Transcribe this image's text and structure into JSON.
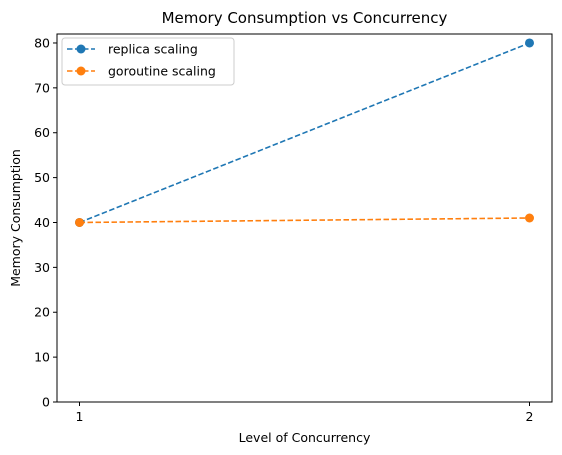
{
  "chart_data": {
    "type": "line",
    "title": "Memory Consumption vs Concurrency",
    "xlabel": "Level of Concurrency",
    "ylabel": "Memory Consumption",
    "x": [
      1,
      2
    ],
    "xticks": [
      "1",
      "2"
    ],
    "xlim": [
      0.95,
      2.05
    ],
    "ylim": [
      0,
      82
    ],
    "yticks": [
      0,
      10,
      20,
      30,
      40,
      50,
      60,
      70,
      80
    ],
    "grid": false,
    "legend": "top-left",
    "series": [
      {
        "name": "replica scaling",
        "values": [
          40,
          80
        ],
        "color": "#1f77b4",
        "line_style": "dashed",
        "marker": "circle"
      },
      {
        "name": "goroutine scaling",
        "values": [
          40,
          41
        ],
        "color": "#ff7f0e",
        "line_style": "dashed",
        "marker": "circle"
      }
    ]
  }
}
